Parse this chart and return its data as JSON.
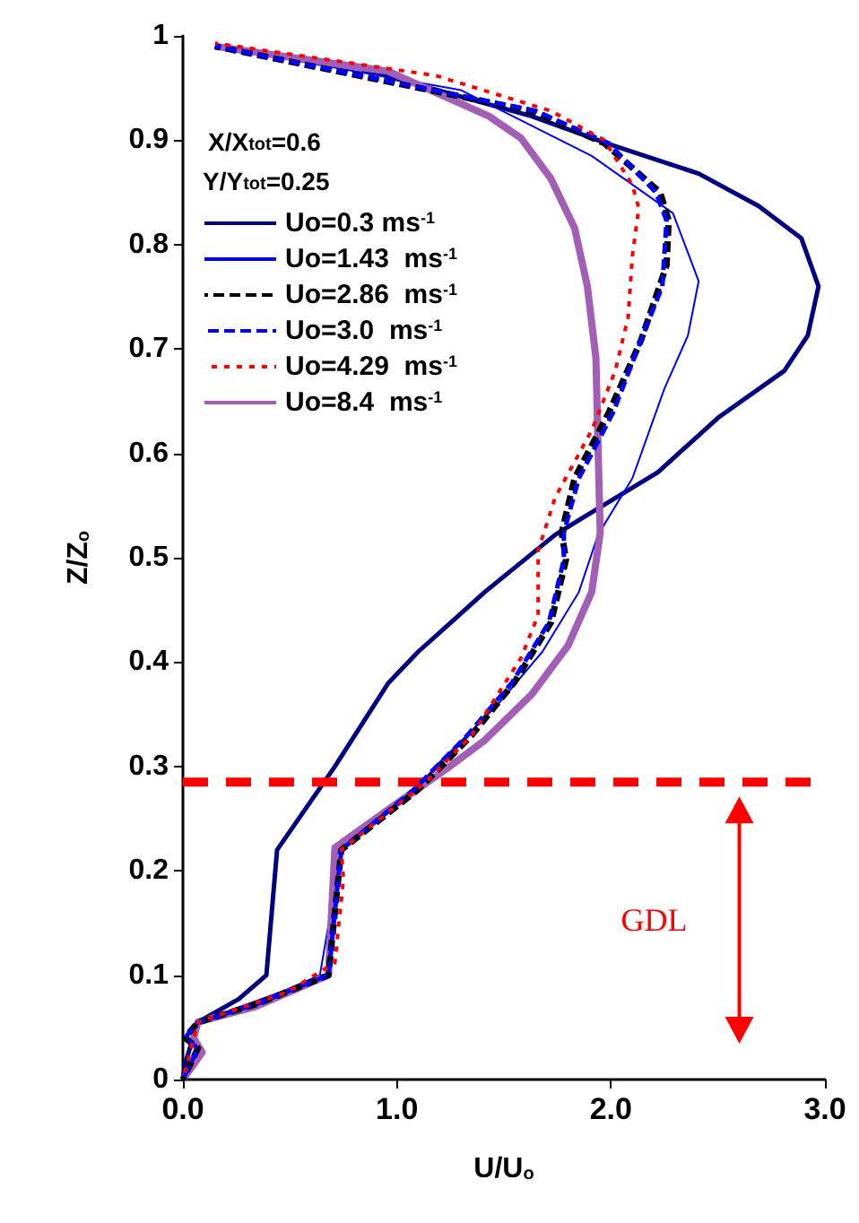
{
  "chart_data": {
    "type": "line",
    "xlabel": "U/U$_{o}$",
    "ylabel": "Z/Z$_{o}$",
    "annotations": [
      "X/X$_{tot}$=0.6",
      "Y/Y$_{tot}$=0.25",
      "GDL"
    ],
    "xlim": [
      0,
      3
    ],
    "xticks": [
      {
        "value": 0,
        "label": "0.0"
      },
      {
        "value": 1,
        "label": "1.0"
      },
      {
        "value": 2,
        "label": "2.0"
      },
      {
        "value": 3,
        "label": "3.0"
      }
    ],
    "ylim": [
      0,
      1
    ],
    "yticks": [
      0,
      0.1,
      0.2,
      0.3,
      0.4,
      0.5,
      0.6,
      0.7,
      0.8,
      0.9,
      1
    ],
    "grid": false,
    "legend": "top left",
    "marker": "none",
    "ref_lines": [
      {
        "axis": "y",
        "value": 0.285,
        "label": null,
        "color": "#ff0000",
        "line_style": "dashed"
      }
    ],
    "series": [
      {
        "name": "Uo=0.3 ms$^{-1}$",
        "color": "#000080",
        "line_style": "solid",
        "x": [
          0,
          0.01,
          0.07,
          0.26,
          0.39,
          0.44,
          0.71,
          0.96,
          1.1,
          1.41,
          1.74,
          1.85,
          2.22,
          2.5,
          2.81,
          2.92,
          2.97,
          2.89,
          2.69,
          2.41,
          1.98,
          1.63,
          0.82,
          0.15
        ],
        "values": [
          0,
          0.015,
          0.055,
          0.077,
          0.1,
          0.22,
          0.3,
          0.38,
          0.41,
          0.467,
          0.522,
          0.536,
          0.582,
          0.634,
          0.679,
          0.713,
          0.76,
          0.806,
          0.837,
          0.868,
          0.897,
          0.923,
          0.969,
          0.99
        ]
      },
      {
        "name": "Uo=1.43  ms$^{-1}$",
        "color": "#0000ff",
        "line_style": "solid",
        "x": [
          0,
          0.07,
          0.01,
          0.07,
          0.46,
          0.64,
          0.74,
          1.07,
          1.18,
          1.47,
          1.68,
          1.85,
          1.94,
          2.1,
          2.25,
          2.36,
          2.41,
          2.29,
          1.91,
          1.3,
          0.15
        ],
        "values": [
          0,
          0.03,
          0.04,
          0.055,
          0.084,
          0.1,
          0.22,
          0.273,
          0.3,
          0.359,
          0.41,
          0.467,
          0.522,
          0.576,
          0.662,
          0.713,
          0.765,
          0.83,
          0.885,
          0.948,
          0.99
        ]
      },
      {
        "name": "Uo=2.86  ms$^{-1}$",
        "color": "#000000",
        "line_style": "dashed",
        "x": [
          0,
          0.07,
          0.01,
          0.07,
          0.34,
          0.68,
          0.74,
          1.1,
          1.35,
          1.55,
          1.72,
          1.79,
          1.77,
          1.83,
          1.99,
          2.14,
          2.26,
          2.27,
          2.23,
          1.97,
          1.63,
          0.15
        ],
        "values": [
          0,
          0.03,
          0.04,
          0.055,
          0.072,
          0.1,
          0.22,
          0.278,
          0.33,
          0.381,
          0.438,
          0.498,
          0.524,
          0.576,
          0.639,
          0.708,
          0.78,
          0.823,
          0.85,
          0.897,
          0.928,
          0.99
        ]
      },
      {
        "name": "Uo=3.0  ms$^{-1}$",
        "color": "#0000ff",
        "line_style": "dashed",
        "x": [
          0,
          0.07,
          0.01,
          0.07,
          0.34,
          0.68,
          0.74,
          1.08,
          1.33,
          1.54,
          1.71,
          1.78,
          1.78,
          1.85,
          2.01,
          2.14,
          2.24,
          2.26,
          2.21,
          1.99,
          1.65,
          0.15
        ],
        "values": [
          0,
          0.03,
          0.04,
          0.055,
          0.072,
          0.1,
          0.22,
          0.278,
          0.33,
          0.381,
          0.438,
          0.498,
          0.524,
          0.576,
          0.639,
          0.708,
          0.76,
          0.823,
          0.85,
          0.897,
          0.928,
          0.99
        ]
      },
      {
        "name": "Uo=4.29  ms$^{-1}$",
        "color": "#ff0000",
        "line_style": "dotted",
        "x": [
          0,
          0.07,
          0.49,
          0.71,
          0.75,
          0.74,
          1.13,
          1.35,
          1.58,
          1.66,
          1.66,
          1.74,
          1.91,
          2.02,
          2.08,
          2.1,
          2.13,
          2.1,
          1.97,
          1.72,
          1.18,
          0.15
        ],
        "values": [
          0,
          0.055,
          0.084,
          0.112,
          0.192,
          0.22,
          0.284,
          0.33,
          0.404,
          0.445,
          0.507,
          0.558,
          0.622,
          0.679,
          0.73,
          0.789,
          0.835,
          0.857,
          0.9,
          0.928,
          0.962,
          0.993
        ]
      },
      {
        "name": "Uo=8.4  ms$^{-1}$",
        "color": "#a35fb5",
        "line_style": "solid",
        "x": [
          0,
          0.09,
          0.05,
          0.07,
          0.34,
          0.68,
          0.71,
          1.01,
          1.22,
          1.41,
          1.63,
          1.8,
          1.91,
          1.95,
          1.94,
          1.93,
          1.89,
          1.83,
          1.72,
          1.58,
          1.43,
          0.96,
          0.15
        ],
        "values": [
          0,
          0.026,
          0.04,
          0.055,
          0.07,
          0.1,
          0.222,
          0.266,
          0.296,
          0.325,
          0.369,
          0.416,
          0.467,
          0.524,
          0.605,
          0.691,
          0.76,
          0.816,
          0.863,
          0.902,
          0.923,
          0.966,
          0.99
        ]
      }
    ]
  }
}
